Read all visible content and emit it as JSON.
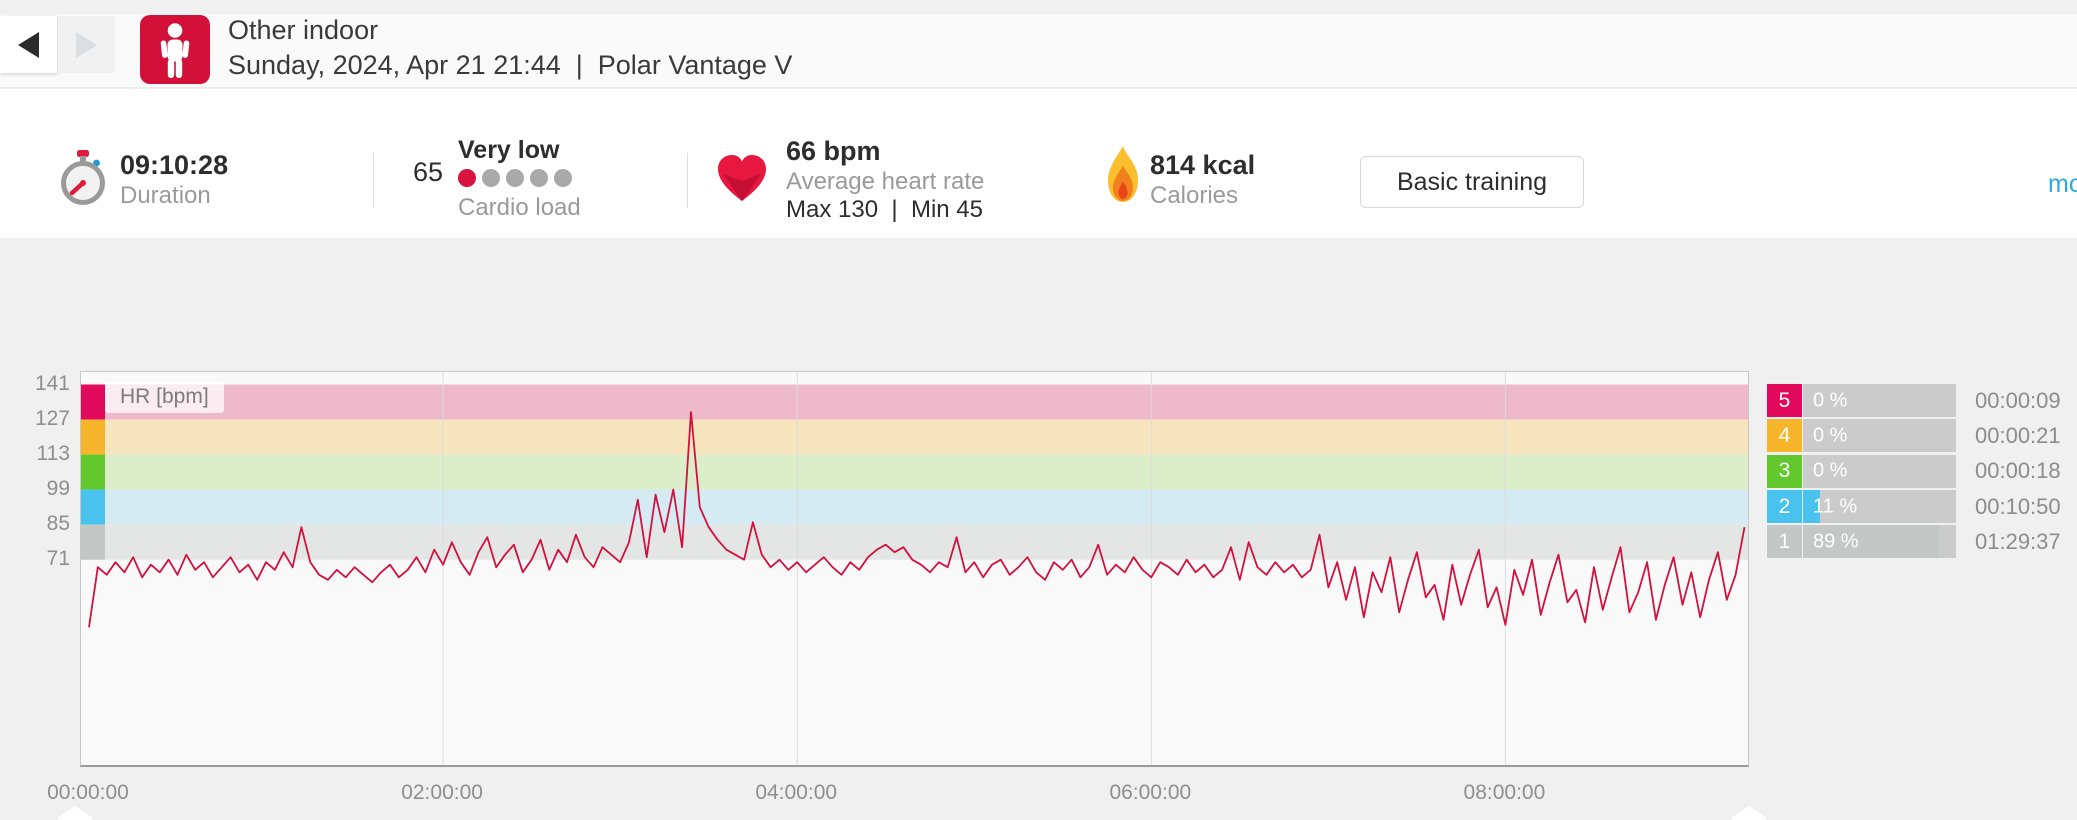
{
  "header": {
    "title": "Other indoor",
    "subtitle": "Sunday, 2024, Apr 21 21:44  |  Polar Vantage V"
  },
  "stats": {
    "duration": {
      "value": "09:10:28",
      "label": "Duration"
    },
    "cardio_load": {
      "value": "65",
      "level": "Very low",
      "label": "Cardio load",
      "dots_total": 5,
      "dots_active": 1
    },
    "heart_rate": {
      "value": "66 bpm",
      "label": "Average heart rate",
      "minmax": "Max 130  |  Min 45"
    },
    "calories": {
      "value": "814 kcal",
      "label": "Calories"
    },
    "training_benefit_button": "Basic training",
    "more_link": "mo"
  },
  "colors": {
    "accent_red": "#d31038",
    "link_blue": "#29abe2",
    "dot_active": "#d8133f",
    "dot_inactive": "#a9a9a9",
    "bar_bg": "#cbcbcb"
  },
  "chart_data": {
    "type": "line",
    "title": "HR [bpm]",
    "x_unit": "hours",
    "x_range": [
      -0.045,
      9.37
    ],
    "y_range": [
      -11,
      146
    ],
    "grid": true,
    "x_ticks": [
      {
        "t": 0,
        "label": "00:00:00"
      },
      {
        "t": 2,
        "label": "02:00:00"
      },
      {
        "t": 4,
        "label": "04:00:00"
      },
      {
        "t": 6,
        "label": "06:00:00"
      },
      {
        "t": 8,
        "label": "08:00:00"
      }
    ],
    "y_ticks": [
      {
        "v": 141,
        "label": "141"
      },
      {
        "v": 127,
        "label": "127"
      },
      {
        "v": 113,
        "label": "113"
      },
      {
        "v": 99,
        "label": "99"
      },
      {
        "v": 85,
        "label": "85"
      },
      {
        "v": 71,
        "label": "71"
      }
    ],
    "zones": [
      {
        "zone": 5,
        "from": 127,
        "to": 141,
        "color": "#e1095c",
        "band": "#efb9cc",
        "pct": "0 %",
        "time": "00:00:09",
        "fill_frac": 0.0
      },
      {
        "zone": 4,
        "from": 113,
        "to": 127,
        "color": "#f7b52b",
        "band": "#f6e5bf",
        "pct": "0 %",
        "time": "00:00:21",
        "fill_frac": 0.0
      },
      {
        "zone": 3,
        "from": 99,
        "to": 113,
        "color": "#62c82d",
        "band": "#dbeec9",
        "pct": "0 %",
        "time": "00:00:18",
        "fill_frac": 0.0
      },
      {
        "zone": 2,
        "from": 85,
        "to": 99,
        "color": "#49c2ed",
        "band": "#d5ebf4",
        "pct": "11 %",
        "time": "00:10:50",
        "fill_frac": 0.11
      },
      {
        "zone": 1,
        "from": 71,
        "to": 85,
        "color": "#c3c8c6",
        "band": "#e4e6e5",
        "pct": "89 %",
        "time": "01:29:37",
        "fill_frac": 0.89
      }
    ],
    "series": [
      {
        "name": "HR",
        "color": "#d2113f",
        "t_step": 0.05,
        "values": [
          44,
          68,
          65,
          70,
          66,
          72,
          64,
          69,
          66,
          71,
          65,
          73,
          67,
          70,
          64,
          68,
          72,
          66,
          69,
          63,
          70,
          67,
          74,
          68,
          84,
          70,
          65,
          63,
          67,
          64,
          68,
          65,
          62,
          66,
          69,
          64,
          67,
          72,
          66,
          75,
          69,
          78,
          70,
          65,
          74,
          80,
          68,
          73,
          77,
          66,
          71,
          79,
          67,
          75,
          70,
          81,
          72,
          68,
          76,
          73,
          70,
          78,
          95,
          72,
          97,
          82,
          99,
          76,
          130,
          92,
          84,
          79,
          75,
          73,
          71,
          86,
          73,
          68,
          71,
          67,
          70,
          66,
          69,
          72,
          68,
          65,
          70,
          67,
          72,
          75,
          77,
          74,
          76,
          71,
          69,
          66,
          70,
          68,
          80,
          66,
          70,
          64,
          69,
          71,
          65,
          68,
          72,
          66,
          63,
          70,
          67,
          71,
          64,
          68,
          77,
          65,
          69,
          66,
          72,
          67,
          64,
          70,
          68,
          65,
          71,
          66,
          69,
          64,
          67,
          76,
          63,
          78,
          68,
          65,
          70,
          66,
          69,
          64,
          67,
          81,
          60,
          70,
          55,
          68,
          48,
          66,
          58,
          72,
          50,
          63,
          74,
          56,
          61,
          47,
          69,
          53,
          65,
          75,
          52,
          60,
          45,
          67,
          57,
          71,
          49,
          62,
          73,
          54,
          59,
          46,
          68,
          51,
          64,
          76,
          50,
          58,
          70,
          47,
          61,
          72,
          53,
          66,
          48,
          63,
          74,
          55,
          65,
          84
        ]
      }
    ]
  }
}
